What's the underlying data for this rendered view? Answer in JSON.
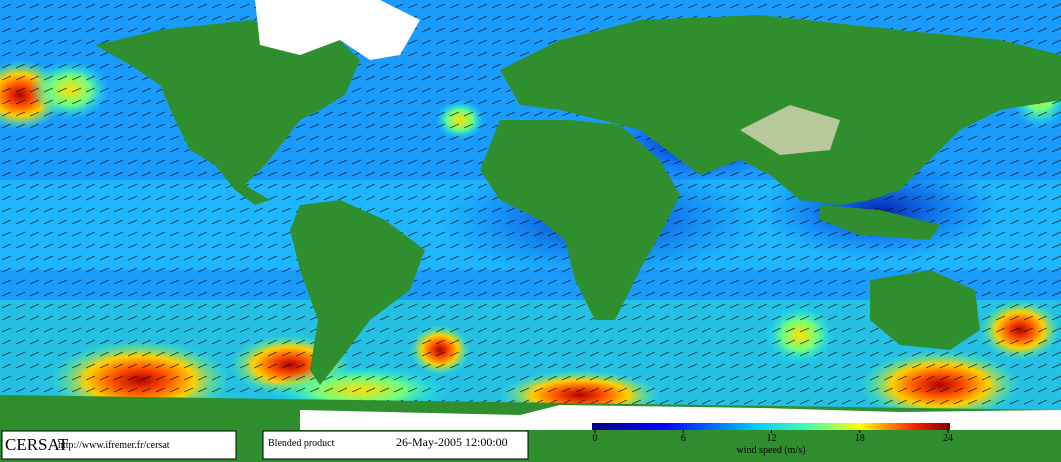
{
  "footer": {
    "logo": "CERSAT",
    "url": "http://www.ifremer.fr/cersat",
    "product": "Blended product",
    "date": "26-May-2005 12:00:00"
  },
  "colorbar": {
    "lim": [
      0,
      24
    ],
    "ticks": [
      0,
      6,
      12,
      18,
      24
    ],
    "label": "wind speed (m/s)"
  }
}
